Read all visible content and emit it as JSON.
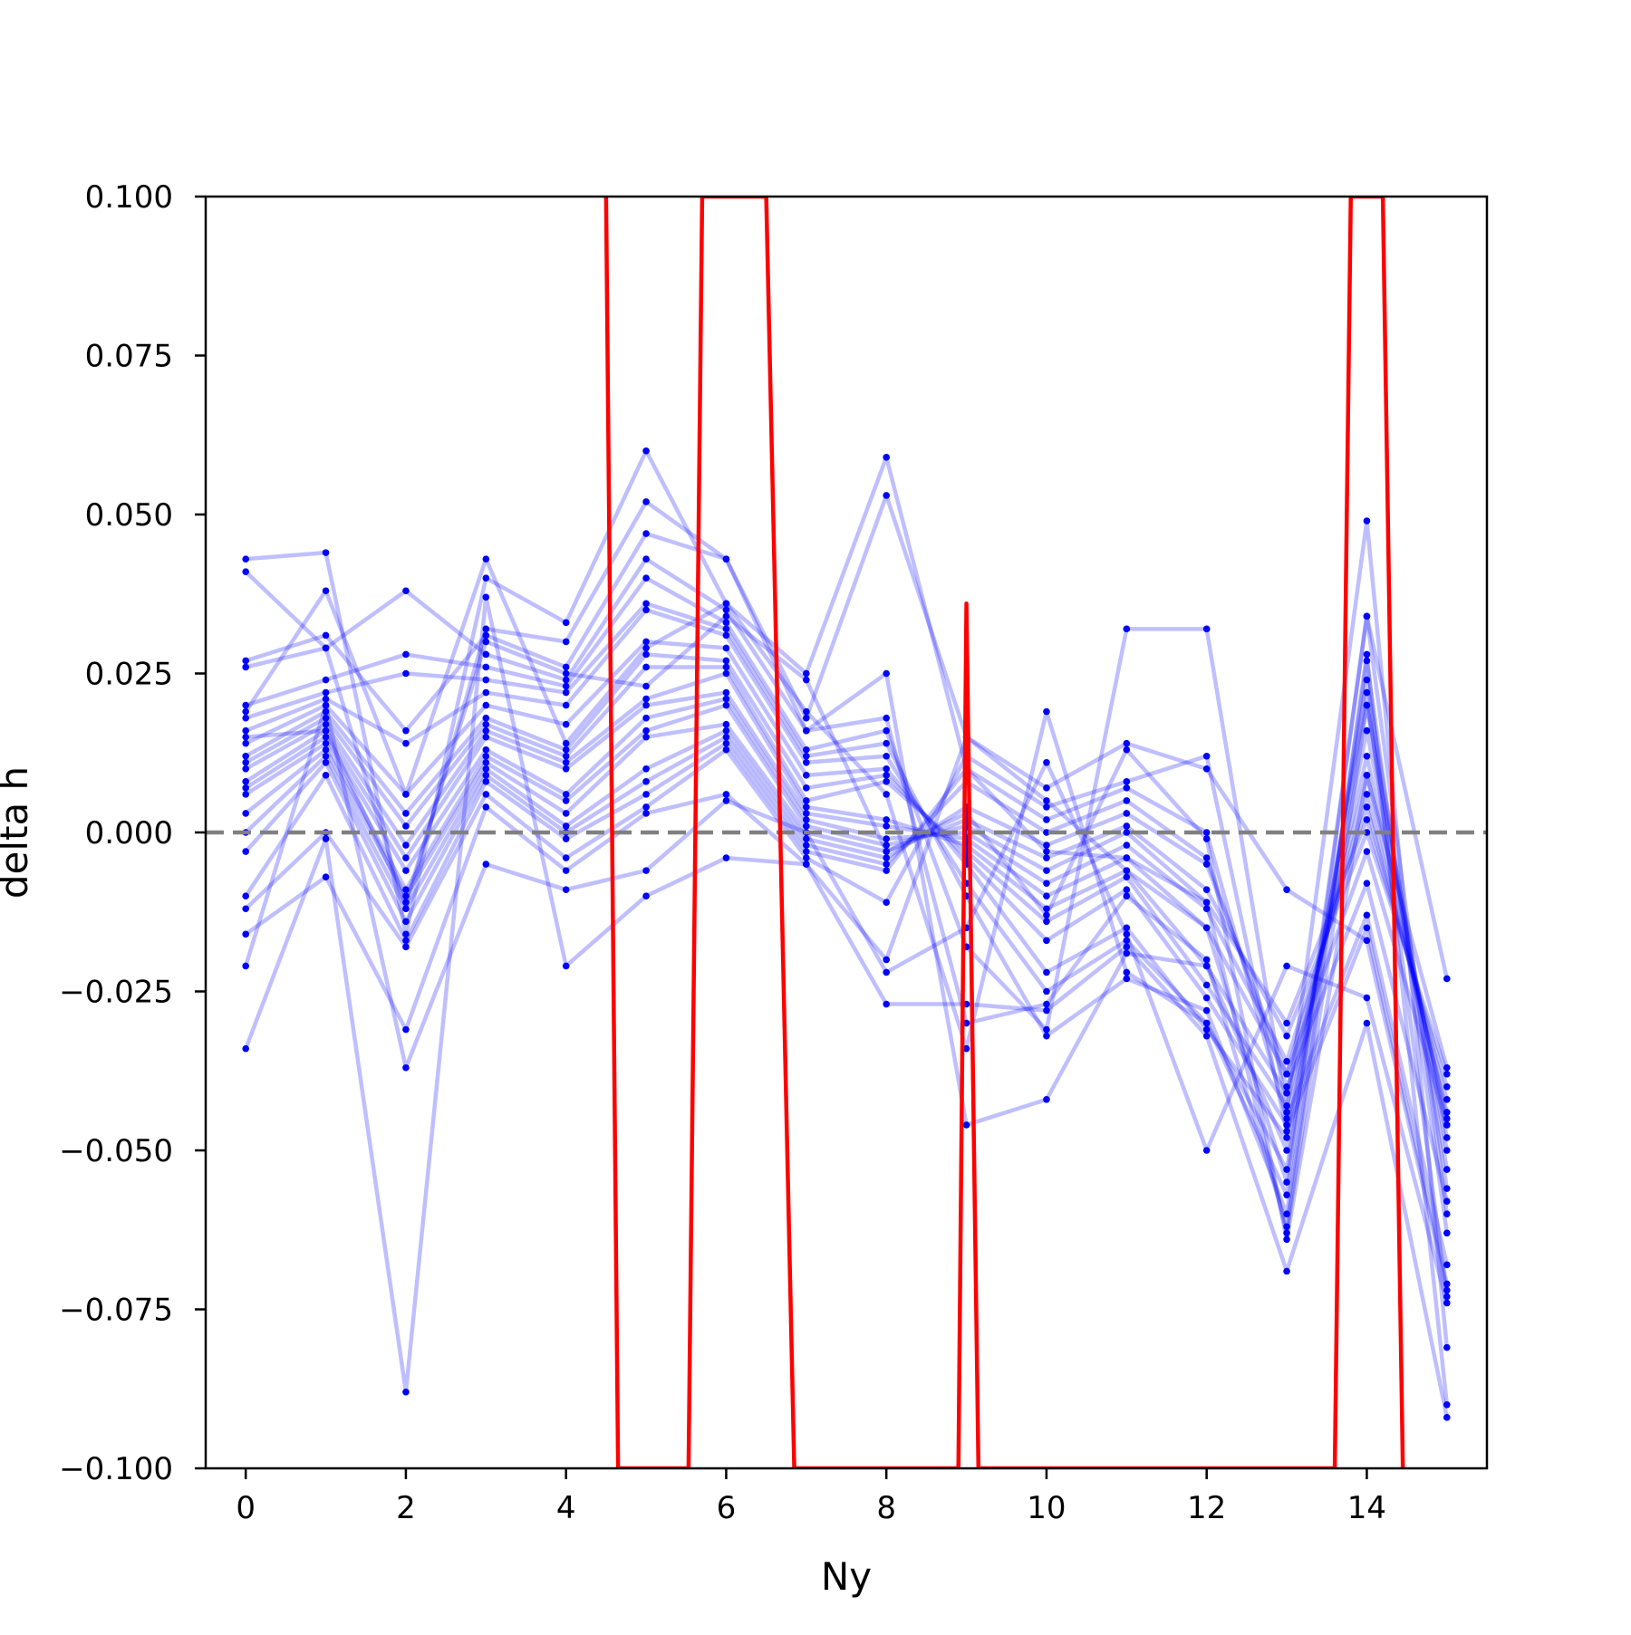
{
  "chart_data": {
    "type": "line",
    "xlabel": "Ny",
    "ylabel": "delta h",
    "xlim": [
      -0.5,
      15.5
    ],
    "ylim": [
      -0.1,
      0.1
    ],
    "grid": false,
    "legend": "none",
    "x_ticks": [
      "0",
      "2",
      "4",
      "6",
      "8",
      "10",
      "12",
      "14"
    ],
    "x_tick_values": [
      0,
      2,
      4,
      6,
      8,
      10,
      12,
      14
    ],
    "y_ticks": [
      "0.100",
      "0.075",
      "0.050",
      "0.025",
      "0.000",
      "−0.025",
      "−0.050",
      "−0.075",
      "−0.100"
    ],
    "y_tick_values": [
      0.1,
      0.075,
      0.05,
      0.025,
      0.0,
      -0.025,
      -0.05,
      -0.075,
      -0.1
    ],
    "colors": {
      "series": "#0000ff",
      "summary": "#ff0000",
      "reference": "#808080"
    },
    "reference_line": {
      "y": 0.0,
      "style": "dashed"
    },
    "x": [
      0,
      1,
      2,
      3,
      4,
      5,
      6,
      7,
      8,
      9,
      10,
      11,
      12,
      13,
      14,
      15
    ],
    "series": [
      {
        "values": [
          0.043,
          0.044,
          -0.016,
          0.04,
          0.033,
          0.06,
          0.036,
          0.025,
          0.059,
          0.01,
          -0.003,
          -0.004,
          -0.011,
          -0.063,
          0.02,
          -0.05
        ]
      },
      {
        "values": [
          0.041,
          0.029,
          -0.012,
          0.032,
          0.03,
          0.052,
          0.043,
          0.018,
          0.053,
          0.015,
          0.005,
          -0.006,
          -0.015,
          -0.055,
          0.034,
          -0.06
        ]
      },
      {
        "values": [
          0.027,
          0.031,
          0.016,
          0.031,
          0.026,
          0.047,
          0.043,
          0.016,
          0.025,
          -0.046,
          -0.042,
          -0.019,
          -0.021,
          -0.05,
          0.022,
          -0.073
        ]
      },
      {
        "values": [
          0.026,
          0.029,
          0.038,
          0.028,
          0.024,
          0.043,
          0.035,
          0.016,
          0.018,
          -0.03,
          -0.027,
          -0.01,
          -0.02,
          -0.062,
          0.028,
          -0.09
        ]
      },
      {
        "values": [
          0.02,
          0.024,
          0.028,
          0.026,
          0.023,
          0.04,
          0.033,
          0.013,
          0.016,
          -0.018,
          -0.031,
          0.032,
          0.032,
          -0.044,
          0.049,
          -0.081
        ]
      },
      {
        "values": [
          0.018,
          0.022,
          0.025,
          0.024,
          0.022,
          0.036,
          0.032,
          0.012,
          0.014,
          -0.01,
          -0.032,
          -0.023,
          -0.028,
          -0.06,
          0.027,
          -0.063
        ]
      },
      {
        "values": [
          0.016,
          0.021,
          0.014,
          0.022,
          0.02,
          0.035,
          0.031,
          0.011,
          0.012,
          -0.008,
          -0.025,
          -0.017,
          -0.03,
          -0.053,
          0.024,
          -0.056
        ]
      },
      {
        "values": [
          0.014,
          0.02,
          0.006,
          0.02,
          0.017,
          0.03,
          0.029,
          0.009,
          0.01,
          -0.005,
          -0.022,
          -0.015,
          -0.031,
          -0.048,
          0.02,
          -0.053
        ]
      },
      {
        "values": [
          0.012,
          0.019,
          0.003,
          0.018,
          0.013,
          0.028,
          0.027,
          0.007,
          0.009,
          -0.004,
          -0.017,
          -0.009,
          -0.026,
          -0.046,
          0.016,
          -0.048
        ]
      },
      {
        "values": [
          0.011,
          0.018,
          0.001,
          0.017,
          0.012,
          0.026,
          0.026,
          0.005,
          0.008,
          -0.003,
          -0.014,
          -0.007,
          -0.024,
          -0.043,
          0.012,
          -0.046
        ]
      },
      {
        "values": [
          0.01,
          0.017,
          -0.002,
          0.016,
          0.011,
          0.021,
          0.025,
          0.004,
          0.002,
          -0.002,
          -0.012,
          -0.006,
          -0.021,
          -0.041,
          0.009,
          -0.045
        ]
      },
      {
        "values": [
          0.008,
          0.016,
          -0.004,
          0.015,
          0.01,
          0.02,
          0.022,
          0.003,
          0.001,
          -0.001,
          -0.01,
          -0.004,
          -0.015,
          -0.038,
          0.006,
          -0.044
        ]
      },
      {
        "values": [
          0.007,
          0.015,
          -0.006,
          0.013,
          0.006,
          0.018,
          0.021,
          0.002,
          -0.001,
          0.0,
          -0.008,
          -0.002,
          -0.012,
          -0.036,
          0.004,
          -0.042
        ]
      },
      {
        "values": [
          0.006,
          0.014,
          -0.009,
          0.012,
          0.005,
          0.016,
          0.02,
          0.001,
          -0.002,
          0.001,
          -0.006,
          0.0,
          -0.011,
          -0.03,
          0.002,
          -0.04
        ]
      },
      {
        "values": [
          0.003,
          0.013,
          -0.01,
          0.011,
          0.003,
          0.015,
          0.017,
          0.0,
          -0.003,
          0.002,
          -0.004,
          0.001,
          -0.009,
          -0.032,
          0.0,
          -0.038
        ]
      },
      {
        "values": [
          0.0,
          0.012,
          -0.012,
          0.01,
          0.001,
          0.01,
          0.016,
          -0.001,
          -0.004,
          0.004,
          -0.002,
          0.003,
          -0.005,
          -0.038,
          -0.003,
          -0.046
        ]
      },
      {
        "values": [
          -0.003,
          0.011,
          -0.014,
          0.009,
          0.0,
          0.008,
          0.015,
          -0.002,
          -0.005,
          0.008,
          0.0,
          0.005,
          -0.004,
          -0.04,
          -0.008,
          -0.058
        ]
      },
      {
        "values": [
          -0.01,
          0.009,
          -0.017,
          0.008,
          -0.001,
          0.006,
          0.014,
          -0.003,
          -0.006,
          0.01,
          0.002,
          0.007,
          0.0,
          -0.045,
          -0.013,
          -0.068
        ]
      },
      {
        "values": [
          -0.012,
          0.0,
          -0.018,
          0.006,
          -0.004,
          0.004,
          0.013,
          -0.004,
          -0.011,
          0.012,
          0.004,
          0.008,
          0.012,
          -0.047,
          -0.015,
          -0.071
        ]
      },
      {
        "values": [
          -0.016,
          -0.007,
          -0.031,
          0.004,
          -0.006,
          0.003,
          0.006,
          -0.005,
          -0.02,
          0.015,
          0.007,
          0.014,
          0.01,
          -0.009,
          -0.017,
          -0.072
        ]
      },
      {
        "values": [
          -0.021,
          0.02,
          -0.037,
          -0.005,
          -0.009,
          -0.006,
          0.005,
          0.0,
          -0.022,
          -0.015,
          0.011,
          -0.016,
          -0.05,
          -0.021,
          -0.026,
          -0.074
        ]
      },
      {
        "values": [
          -0.034,
          -0.001,
          -0.088,
          0.037,
          -0.021,
          -0.01,
          -0.004,
          -0.005,
          -0.027,
          -0.027,
          -0.028,
          -0.018,
          -0.032,
          -0.069,
          -0.03,
          -0.092
        ]
      },
      {
        "values": [
          0.019,
          0.038,
          0.006,
          0.043,
          0.014,
          0.029,
          0.036,
          0.019,
          0.006,
          -0.034,
          0.019,
          -0.022,
          -0.03,
          -0.057,
          0.034,
          -0.023
        ]
      },
      {
        "values": [
          0.015,
          0.016,
          -0.011,
          0.03,
          0.025,
          0.023,
          0.034,
          0.024,
          -0.003,
          0.003,
          -0.013,
          0.013,
          -0.001,
          -0.064,
          0.009,
          -0.037
        ]
      }
    ],
    "summary_line": {
      "x": [
        4.5,
        4.65,
        5.53,
        5.7,
        6.5,
        6.85,
        8.9,
        9.0,
        9.15,
        13.6,
        13.8,
        14.2,
        14.45
      ],
      "values": [
        0.1,
        -0.1,
        -0.1,
        0.1,
        0.1,
        -0.1,
        -0.1,
        0.036,
        -0.1,
        -0.1,
        0.1,
        0.1,
        -0.1
      ]
    }
  }
}
